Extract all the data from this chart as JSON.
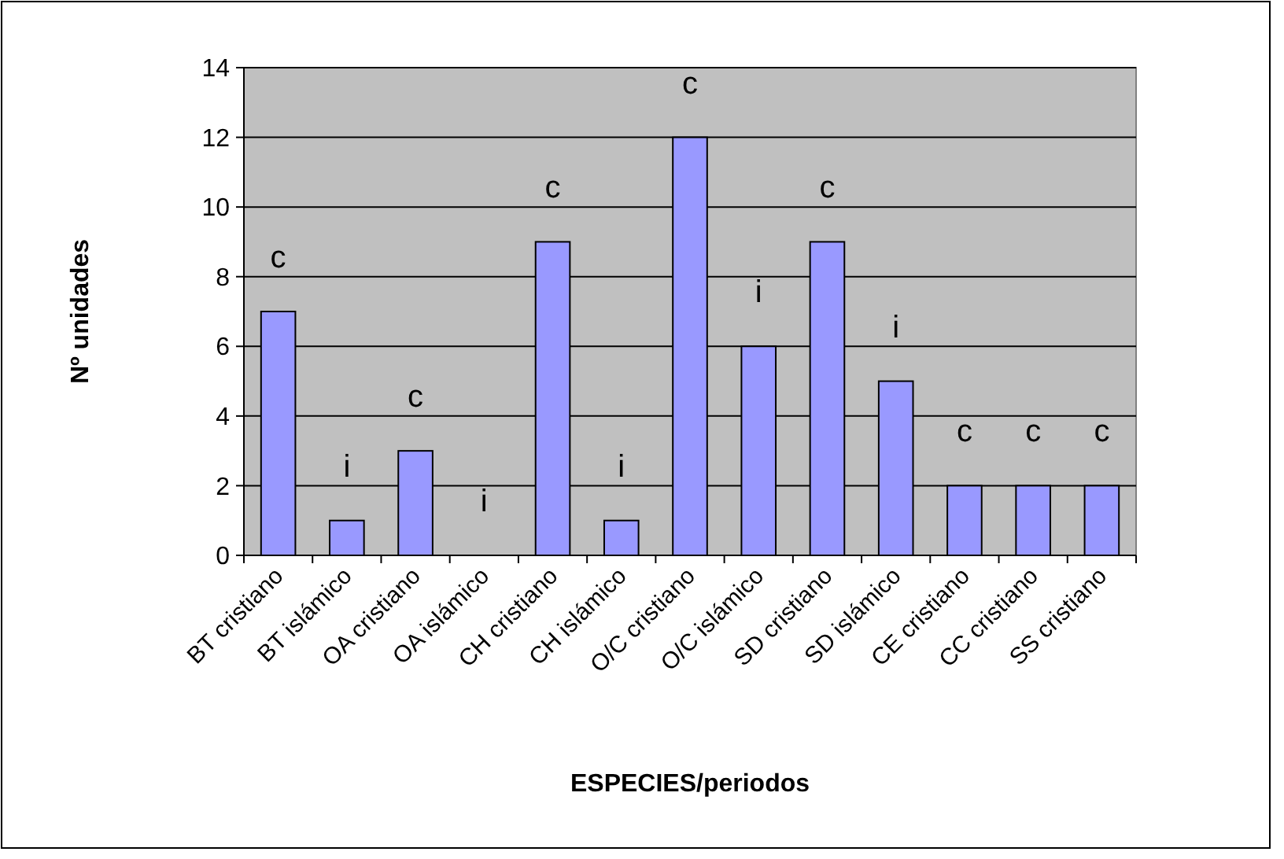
{
  "chart_data": {
    "type": "bar",
    "xlabel": "ESPECIES/periodos",
    "ylabel": "Nº unidades",
    "categories": [
      "BT cristiano",
      "BT islámico",
      "OA cristiano",
      "OA islámico",
      "CH cristiano",
      "CH islámico",
      "O/C cristiano",
      "O/C islámico",
      "SD cristiano",
      "SD islámico",
      "CE cristiano",
      "CC cristiano",
      "SS cristiano"
    ],
    "values": [
      7,
      1,
      3,
      0,
      9,
      1,
      12,
      6,
      9,
      5,
      2,
      2,
      2
    ],
    "value_labels": [
      "c",
      "i",
      "c",
      "i",
      "c",
      "i",
      "c",
      "i",
      "c",
      "i",
      "c",
      "c",
      "c"
    ],
    "color": "#9999ff",
    "ylim": [
      0,
      14
    ],
    "yticks": [
      0,
      2,
      4,
      6,
      8,
      10,
      12,
      14
    ],
    "grid": "y"
  }
}
